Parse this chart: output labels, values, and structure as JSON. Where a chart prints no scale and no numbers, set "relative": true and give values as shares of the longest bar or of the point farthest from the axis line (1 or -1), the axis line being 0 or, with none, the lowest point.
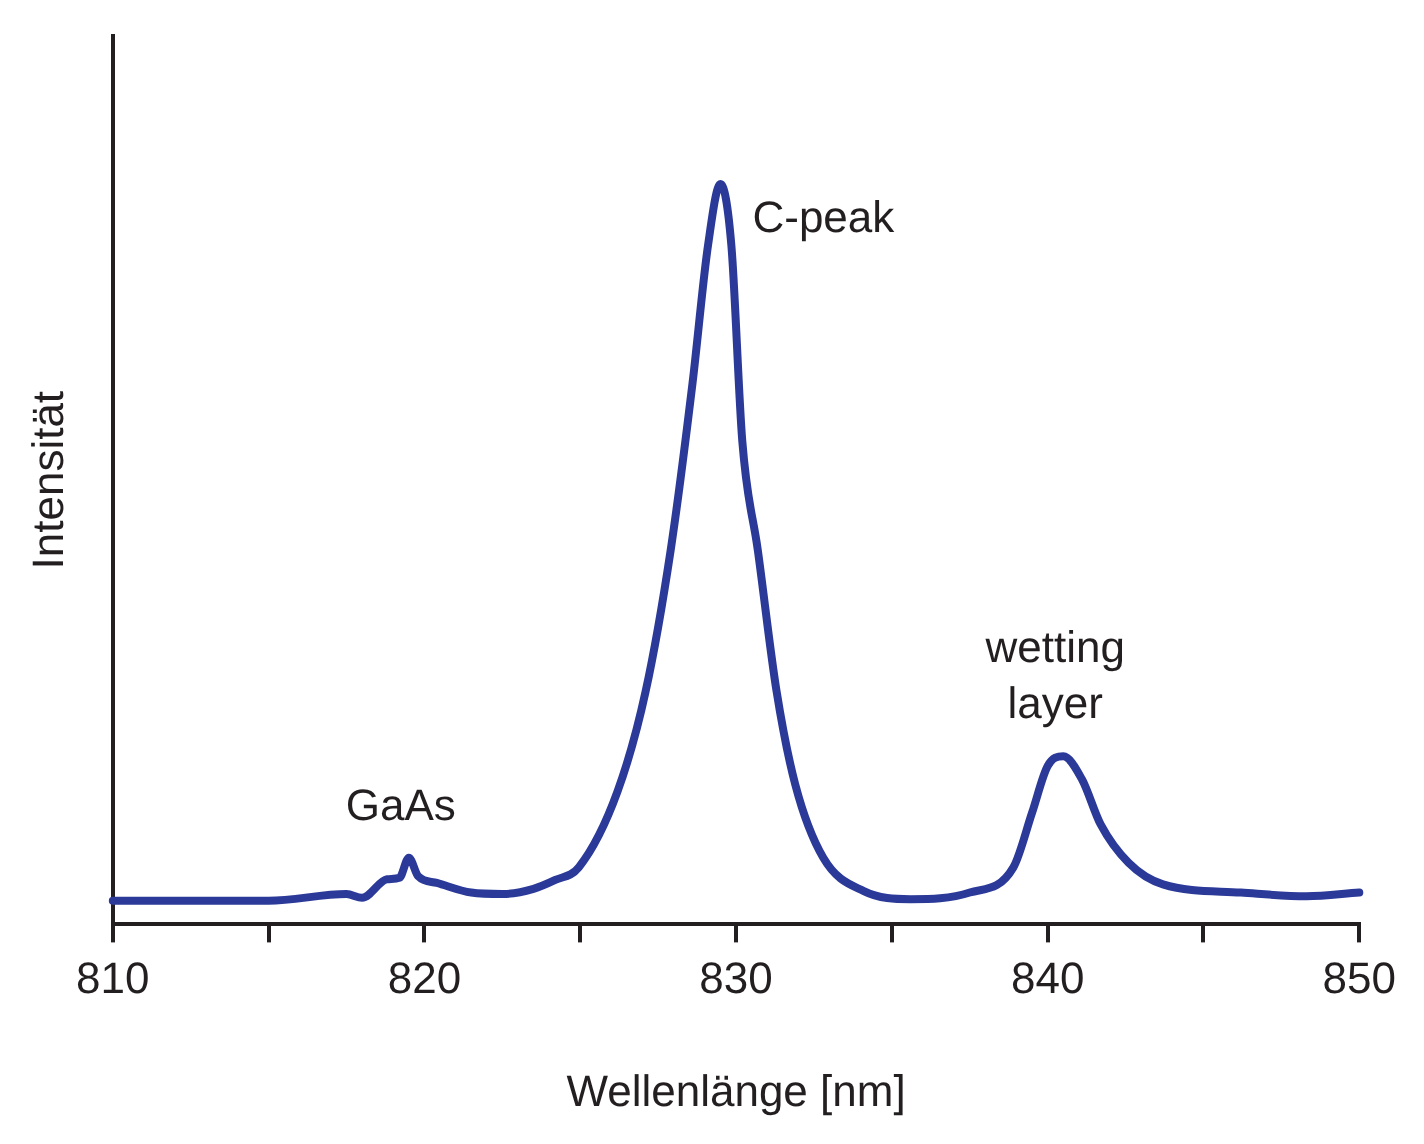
{
  "chart_data": {
    "type": "line",
    "xlabel": "Wellenlänge [nm]",
    "ylabel": "Intensität",
    "relative": true,
    "grid": false,
    "legend": false,
    "marker": "none",
    "line_style": "solid",
    "tick_labels": "x",
    "xlim": [
      810,
      850
    ],
    "xticks": [
      810,
      {
        "value": 815,
        "label": null
      },
      820,
      {
        "value": 825,
        "label": null
      },
      830,
      {
        "value": 835,
        "label": null
      },
      840,
      {
        "value": 845,
        "label": null
      },
      850
    ],
    "annotations": [
      {
        "text": "GaAs",
        "x": 819.5,
        "y": 0.09
      },
      {
        "text": "C-peak",
        "x": 829.5,
        "y": 1
      },
      {
        "text": "wetting layer",
        "x": 840.5,
        "y": 0.227
      }
    ],
    "series": [
      {
        "color": "#2b3a98",
        "x": [
          810,
          815,
          817.5,
          818,
          818.8,
          819.2,
          819.5,
          819.8,
          820.4,
          821.5,
          822.5,
          823.5,
          824.2,
          824.95,
          826.2,
          827.1,
          827.9,
          828.6,
          829.1,
          829.5,
          829.85,
          830.2,
          830.7,
          831.3,
          831.9,
          832.8,
          834.1,
          835.6,
          837.5,
          838.9,
          839.5,
          840,
          840.5,
          841.1,
          841.7,
          842.6,
          843.7,
          846.2,
          848.3,
          850
        ],
        "values": [
          0.032,
          0.032,
          0.041,
          0.036,
          0.061,
          0.063,
          0.09,
          0.065,
          0.056,
          0.043,
          0.041,
          0.048,
          0.06,
          0.077,
          0.18,
          0.315,
          0.505,
          0.73,
          0.917,
          1,
          0.917,
          0.653,
          0.505,
          0.315,
          0.189,
          0.09,
          0.045,
          0.034,
          0.043,
          0.077,
          0.151,
          0.214,
          0.227,
          0.196,
          0.135,
          0.083,
          0.054,
          0.043,
          0.038,
          0.043
        ]
      }
    ]
  }
}
